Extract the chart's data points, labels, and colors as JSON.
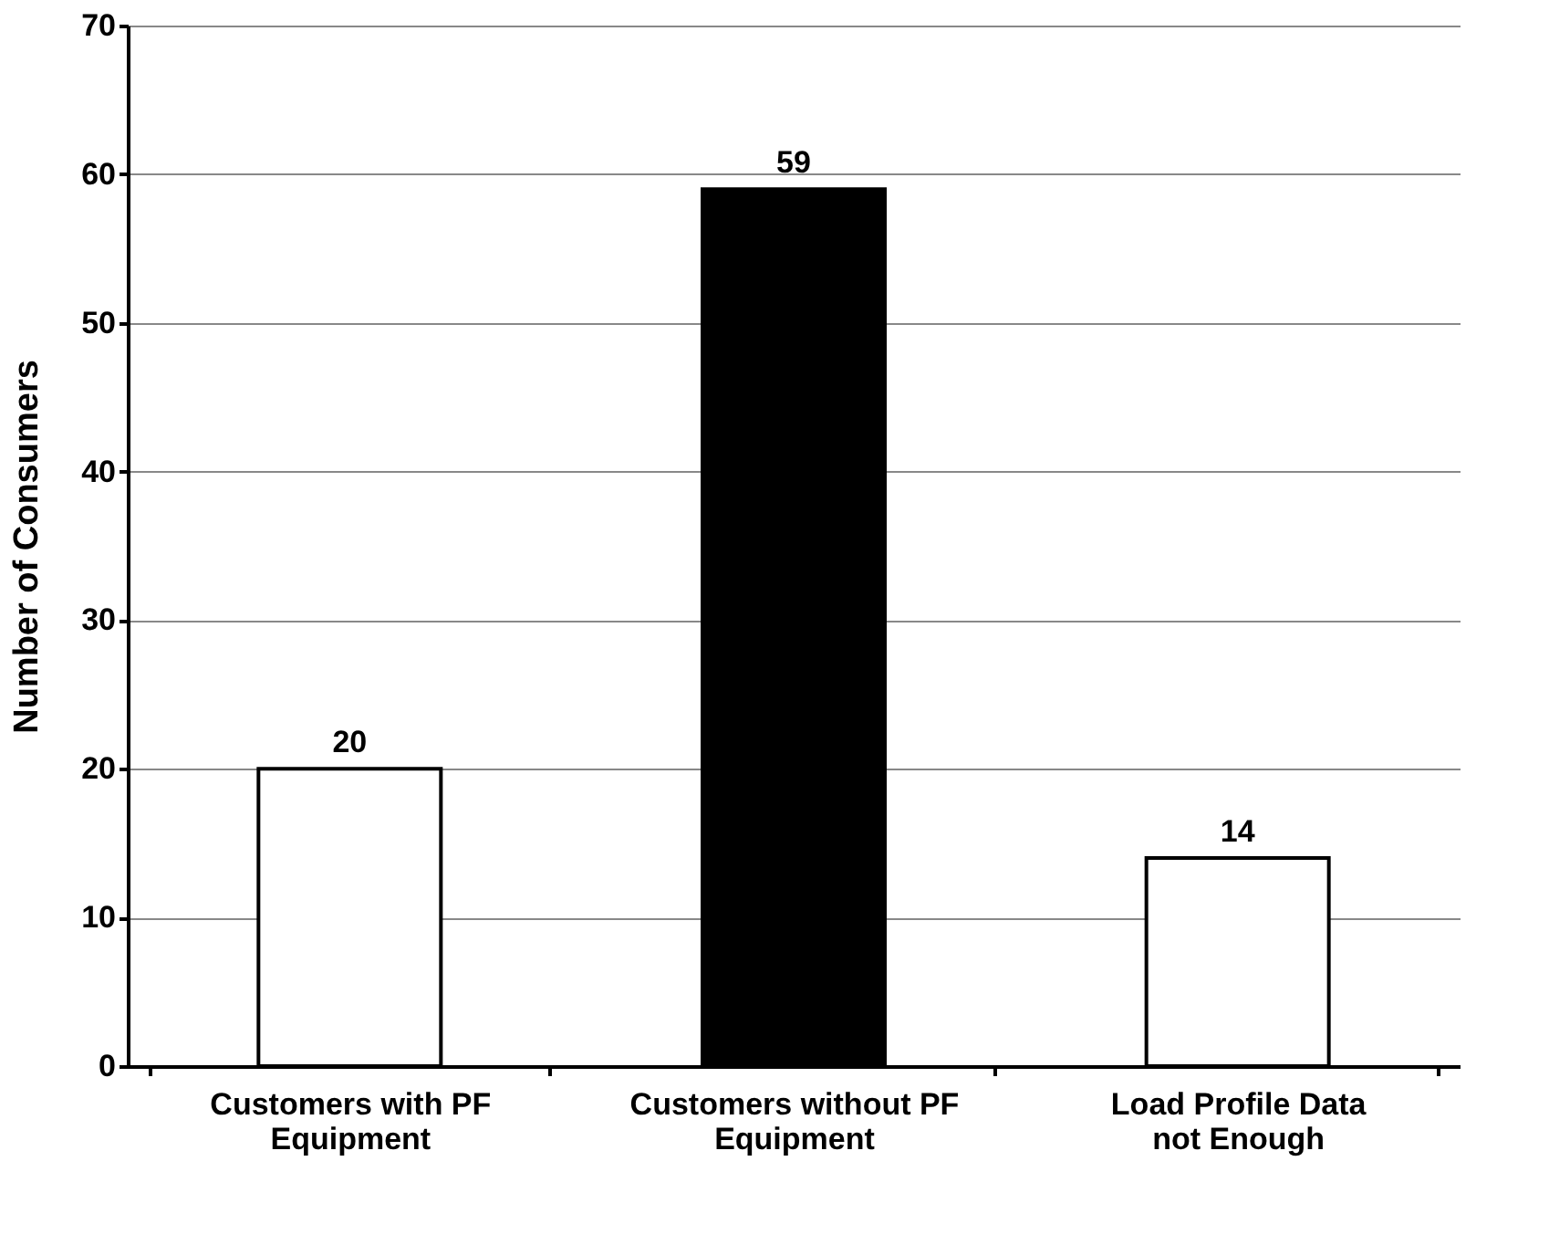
{
  "chart_data": {
    "type": "bar",
    "ylabel": "Number of Consumers",
    "categories": [
      "Customers with PF Equipment",
      "Customers without PF Equipment",
      "Load Profile Data not Enough"
    ],
    "values": [
      20,
      59,
      14
    ],
    "colors": [
      "#ffffff",
      "#000000",
      "#ffffff"
    ],
    "ylim": [
      0,
      70
    ],
    "yticks": [
      0,
      10,
      20,
      30,
      40,
      50,
      60,
      70
    ],
    "grid": "y",
    "data_labels": true
  }
}
